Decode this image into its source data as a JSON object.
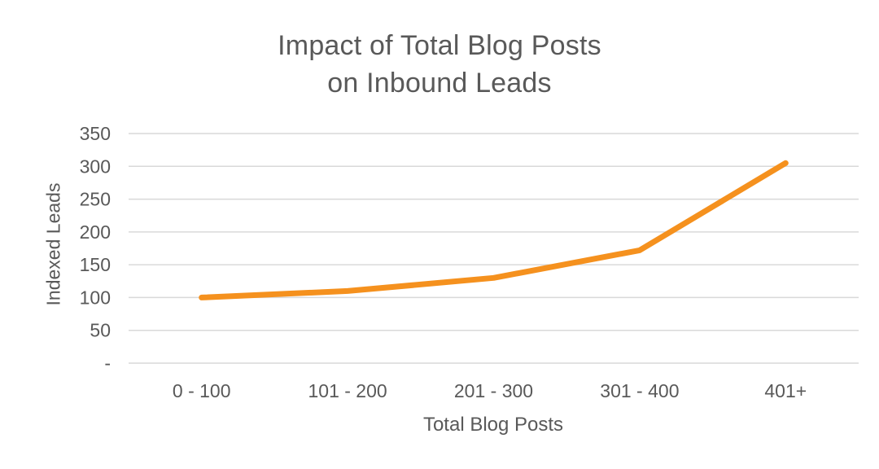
{
  "chart": {
    "title_lines": [
      "Impact of Total Blog Posts",
      "on Inbound Leads"
    ]
  },
  "chart_data": {
    "type": "line",
    "title": "Impact of Total Blog Posts on Inbound Leads",
    "categories": [
      "0 - 100",
      "101 - 200",
      "201 - 300",
      "301 - 400",
      "401+"
    ],
    "series": [
      {
        "name": "Indexed Leads",
        "values": [
          100,
          110,
          130,
          172,
          305
        ]
      }
    ],
    "xlabel": "Total Blog Posts",
    "ylabel": "Indexed Leads",
    "ylim": [
      0,
      350
    ],
    "y_ticks": [
      0,
      50,
      100,
      150,
      200,
      250,
      300,
      350
    ],
    "y_tick_labels": [
      "-",
      "50",
      "100",
      "150",
      "200",
      "250",
      "300",
      "350"
    ],
    "grid": true,
    "legend": "none",
    "line_color": "#F5911E",
    "grid_color": "#D9D9D9",
    "text_color": "#595959"
  }
}
